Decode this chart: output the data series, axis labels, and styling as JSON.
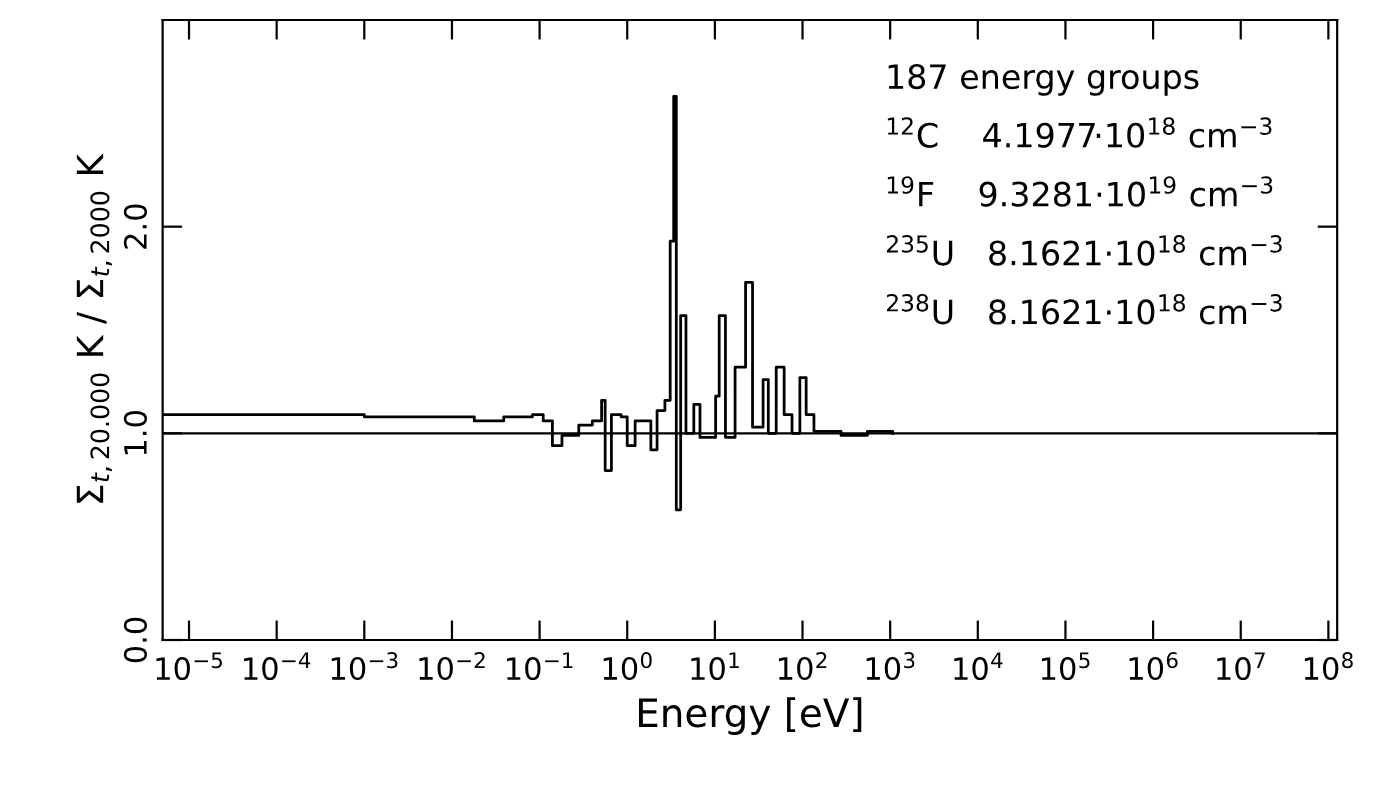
{
  "chart_data": {
    "type": "step",
    "xlabel": "Energy [eV]",
    "ylabel": "Σ$_{t,20.000}$ K / Σ$_{t,2000}$ K",
    "log": "x",
    "grid": false,
    "x": [
      5e-06,
      0.0001,
      0.001,
      0.0022,
      0.018,
      0.039,
      0.083,
      0.11,
      0.14,
      0.18,
      0.28,
      0.4,
      0.51,
      0.56,
      0.66,
      0.85,
      1.0,
      1.23,
      1.86,
      2.19,
      2.69,
      3.09,
      3.39,
      3.63,
      4.07,
      4.68,
      5.75,
      6.76,
      10.2,
      11.2,
      13.2,
      17.0,
      22.4,
      26.9,
      35.5,
      40.7,
      50.1,
      61.7,
      75.9,
      93.3,
      110,
      135,
      275,
      550,
      1070
    ],
    "series": [
      {
        "color": "#000000",
        "values": [
          1.09,
          1.09,
          1.08,
          1.08,
          1.06,
          1.08,
          1.09,
          1.06,
          0.94,
          0.99,
          1.04,
          1.06,
          1.16,
          0.82,
          1.09,
          1.08,
          0.94,
          1.06,
          0.92,
          1.11,
          1.16,
          1.93,
          2.63,
          0.63,
          1.57,
          1.0,
          1.14,
          0.98,
          1.18,
          1.57,
          0.98,
          1.32,
          1.73,
          1.03,
          1.26,
          1.0,
          1.32,
          1.09,
          1.0,
          1.27,
          1.09,
          1.01,
          0.99,
          1.01,
          1.0
        ]
      }
    ],
    "xlim": [
      5e-06,
      126000000.0
    ],
    "ylim": [
      0,
      3
    ],
    "xticks": [
      {
        "value": 1e-05,
        "label": "10$^{−5}$"
      },
      {
        "value": 0.0001,
        "label": "10$^{−4}$"
      },
      {
        "value": 0.001,
        "label": "10$^{−3}$"
      },
      {
        "value": 0.01,
        "label": "10$^{−2}$"
      },
      {
        "value": 0.1,
        "label": "10$^{−1}$"
      },
      {
        "value": 1,
        "label": "10$^{0}$"
      },
      {
        "value": 10,
        "label": "10$^{1}$"
      },
      {
        "value": 100,
        "label": "10$^{2}$"
      },
      {
        "value": 1000,
        "label": "10$^{3}$"
      },
      {
        "value": 10000,
        "label": "10$^{4}$"
      },
      {
        "value": 100000,
        "label": "10$^{5}$"
      },
      {
        "value": 1000000,
        "label": "10$^{6}$"
      },
      {
        "value": 10000000,
        "label": "10$^{7}$"
      },
      {
        "value": 100000000,
        "label": "10$^{8}$"
      }
    ],
    "yticks": [
      {
        "value": 0,
        "label": "0.0"
      },
      {
        "value": 1,
        "label": "1.0"
      },
      {
        "value": 2,
        "label": "2.0"
      }
    ],
    "ref_lines": [
      {
        "axis": "y",
        "value": 1,
        "color": "#000000"
      }
    ],
    "annotations": [
      "187 energy groups",
      "$^{12}$C    4.1977·10$^{18}$ cm$^{−3}$",
      "$^{19}$F    9.3281·10$^{19}$ cm$^{−3}$",
      "$^{235}$U   8.1621·10$^{18}$ cm$^{−3}$",
      "$^{238}$U   8.1621·10$^{18}$ cm$^{−3}$"
    ]
  }
}
